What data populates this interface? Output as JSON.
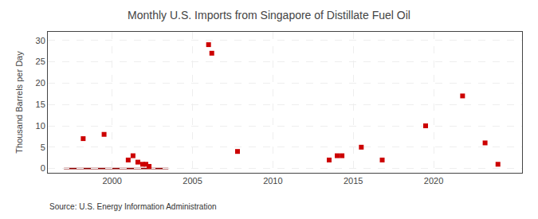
{
  "chart_data": {
    "type": "scatter",
    "title": "Monthly U.S. Imports from Singapore of Distillate Fuel Oil",
    "ylabel": "Thousand Barrels per Day",
    "source": "Source: U.S. Energy Information Administration",
    "x": [
      1998.2,
      1999.5,
      2001.0,
      2001.3,
      2001.6,
      2001.9,
      2002.1,
      2002.3,
      2006.0,
      2006.2,
      2007.8,
      2013.5,
      2014.0,
      2014.3,
      2015.5,
      2016.8,
      2019.5,
      2021.8,
      2023.2,
      2024.0
    ],
    "values": [
      7,
      8,
      2,
      3,
      1.5,
      1,
      1,
      0.5,
      29,
      27,
      4,
      2,
      3,
      3,
      5,
      2,
      10,
      17,
      6,
      1
    ],
    "color": "#cc0000",
    "marker": "square",
    "xlim": [
      1996,
      2025.5
    ],
    "ylim": [
      -1,
      32
    ],
    "xticks": [
      2000,
      2005,
      2010,
      2015,
      2020
    ],
    "yticks": [
      0,
      5,
      10,
      15,
      20,
      25,
      30
    ],
    "grid": true,
    "bar": {
      "x_start": 1997.0,
      "x_end": 2003.5,
      "y": 0,
      "height": 0.3,
      "color": "#8b0000"
    }
  }
}
